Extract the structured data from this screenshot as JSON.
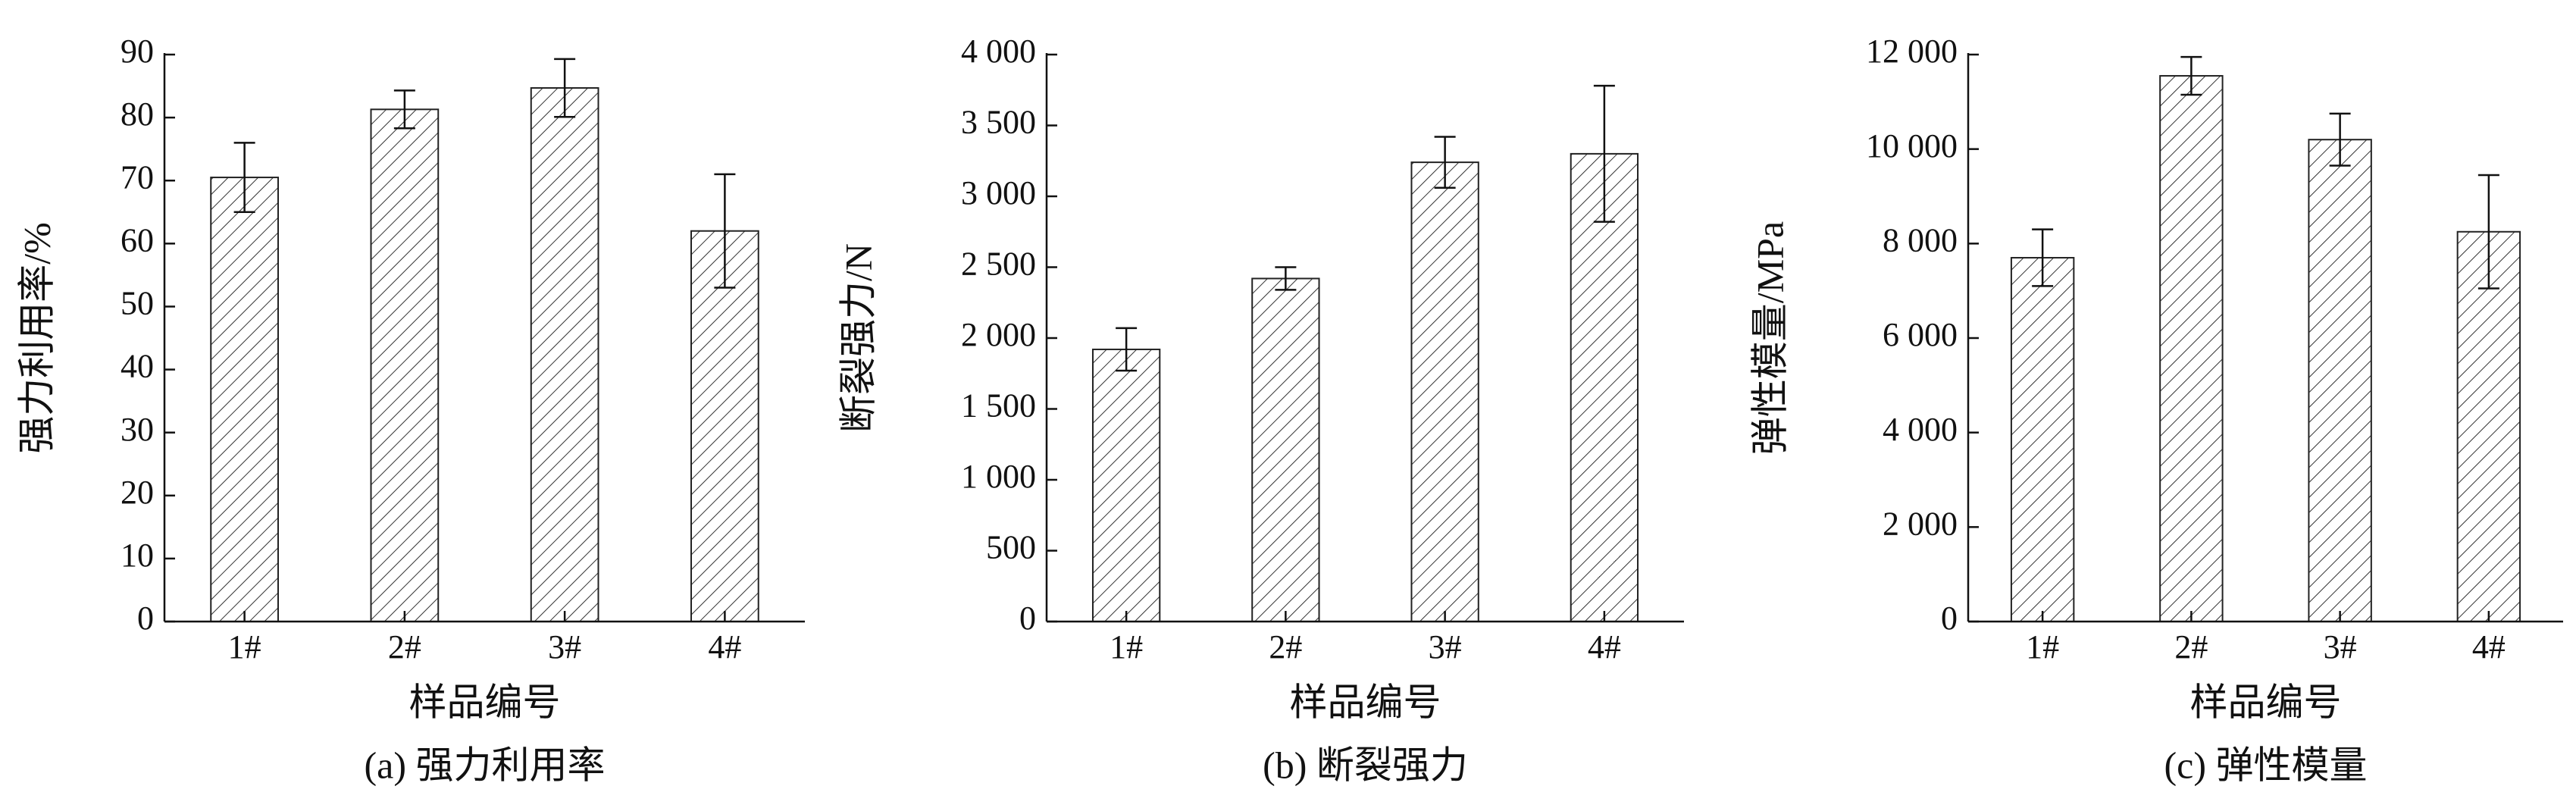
{
  "chart_data": [
    {
      "type": "bar",
      "caption": "(a) 强力利用率",
      "xlabel": "样品编号",
      "ylabel": "强力利用率/%",
      "categories": [
        "1#",
        "2#",
        "3#",
        "4#"
      ],
      "values": [
        70.5,
        81.3,
        84.7,
        62
      ],
      "errors": [
        5.5,
        3,
        4.6,
        9
      ],
      "ylim": [
        0,
        90
      ],
      "yticks": [
        0,
        10,
        20,
        30,
        40,
        50,
        60,
        70,
        80,
        90
      ]
    },
    {
      "type": "bar",
      "caption": "(b) 断裂强力",
      "xlabel": "样品编号",
      "ylabel": "断裂强力/N",
      "categories": [
        "1#",
        "2#",
        "3#",
        "4#"
      ],
      "values": [
        1920,
        2420,
        3240,
        3300
      ],
      "errors": [
        150,
        80,
        180,
        480
      ],
      "ylim": [
        0,
        4000
      ],
      "yticks": [
        0,
        500,
        {
          "value": 1000,
          "label": "1 000"
        },
        {
          "value": 1500,
          "label": "1 500"
        },
        {
          "value": 2000,
          "label": "2 000"
        },
        {
          "value": 2500,
          "label": "2 500"
        },
        {
          "value": 3000,
          "label": "3 000"
        },
        {
          "value": 3500,
          "label": "3 500"
        },
        {
          "value": 4000,
          "label": "4 000"
        }
      ]
    },
    {
      "type": "bar",
      "caption": "(c) 弹性模量",
      "xlabel": "样品编号",
      "ylabel": "弹性模量/MPa",
      "categories": [
        "1#",
        "2#",
        "3#",
        "4#"
      ],
      "values": [
        7700,
        11550,
        10200,
        8250
      ],
      "errors": [
        600,
        400,
        550,
        1200
      ],
      "ylim": [
        0,
        12000
      ],
      "yticks": [
        0,
        {
          "value": 2000,
          "label": "2 000"
        },
        {
          "value": 4000,
          "label": "4 000"
        },
        {
          "value": 6000,
          "label": "6 000"
        },
        {
          "value": 8000,
          "label": "8 000"
        },
        {
          "value": 10000,
          "label": "10 000"
        },
        {
          "value": 12000,
          "label": "12 000"
        }
      ]
    }
  ]
}
